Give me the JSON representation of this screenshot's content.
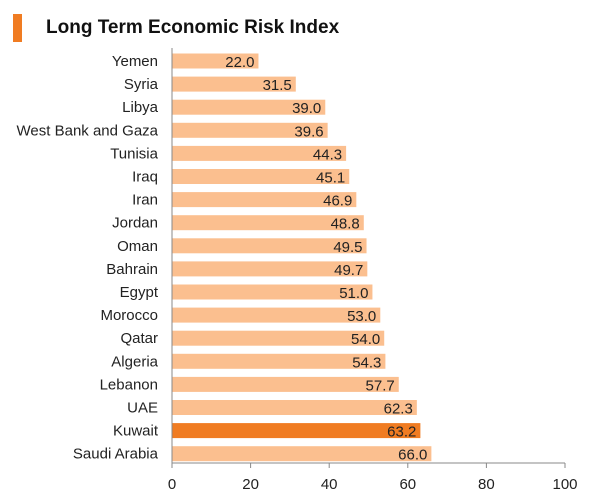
{
  "title": "Long Term Economic Risk Index",
  "chart_data": {
    "type": "bar",
    "orientation": "horizontal",
    "title": "Long Term Economic Risk Index",
    "categories": [
      "Yemen",
      "Syria",
      "Libya",
      "West Bank and Gaza",
      "Tunisia",
      "Iraq",
      "Iran",
      "Jordan",
      "Oman",
      "Bahrain",
      "Egypt",
      "Morocco",
      "Qatar",
      "Algeria",
      "Lebanon",
      "UAE",
      "Kuwait",
      "Saudi Arabia"
    ],
    "values": [
      22.0,
      31.5,
      39.0,
      39.6,
      44.3,
      45.1,
      46.9,
      48.8,
      49.5,
      49.7,
      51.0,
      53.0,
      54.0,
      54.3,
      57.7,
      62.3,
      63.2,
      66.0
    ],
    "value_labels": [
      "22.0",
      "31.5",
      "39.0",
      "39.6",
      "44.3",
      "45.1",
      "46.9",
      "48.8",
      "49.5",
      "49.7",
      "51.0",
      "53.0",
      "54.0",
      "54.3",
      "57.7",
      "62.3",
      "63.2",
      "66.0"
    ],
    "highlight": "Kuwait",
    "xlim": [
      0,
      100
    ],
    "xticks": [
      "0",
      "20",
      "40",
      "60",
      "80",
      "100"
    ],
    "xlabel": "",
    "ylabel": "",
    "grid": false,
    "colors": {
      "bar": "#fbbf8f",
      "highlight": "#f07c22",
      "title_accent": "#f07c22",
      "axis": "#888888"
    }
  }
}
